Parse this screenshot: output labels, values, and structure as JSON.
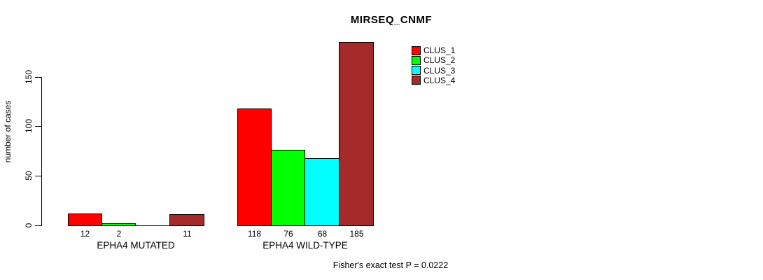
{
  "title": "MIRSEQ_CNMF",
  "footer": "Fisher's exact test P = 0.0222",
  "y_axis": {
    "label": "number of cases",
    "ticks": [
      0,
      50,
      100,
      150
    ]
  },
  "legend": [
    {
      "label": "CLUS_1",
      "color": "#FF0000"
    },
    {
      "label": "CLUS_2",
      "color": "#00FF00"
    },
    {
      "label": "CLUS_3",
      "color": "#00FFFF"
    },
    {
      "label": "CLUS_4",
      "color": "#A52A2A"
    }
  ],
  "chart_data": {
    "type": "bar",
    "categories": [
      "EPHA4 MUTATED",
      "EPHA4 WILD-TYPE"
    ],
    "series": [
      {
        "name": "CLUS_1",
        "color": "#FF0000",
        "values": [
          12,
          118
        ]
      },
      {
        "name": "CLUS_2",
        "color": "#00FF00",
        "values": [
          2,
          76
        ]
      },
      {
        "name": "CLUS_3",
        "color": "#00FFFF",
        "values": [
          0,
          68
        ]
      },
      {
        "name": "CLUS_4",
        "color": "#A52A2A",
        "values": [
          11,
          185
        ]
      }
    ],
    "bar_labels": [
      [
        "12",
        "2",
        "",
        "11"
      ],
      [
        "118",
        "76",
        "68",
        "185"
      ]
    ],
    "title": "MIRSEQ_CNMF",
    "xlabel": "",
    "ylabel": "number of cases",
    "ylim": [
      0,
      150
    ],
    "grid": false,
    "legend_position": "top-right",
    "annotation": "Fisher's exact test P = 0.0222"
  }
}
